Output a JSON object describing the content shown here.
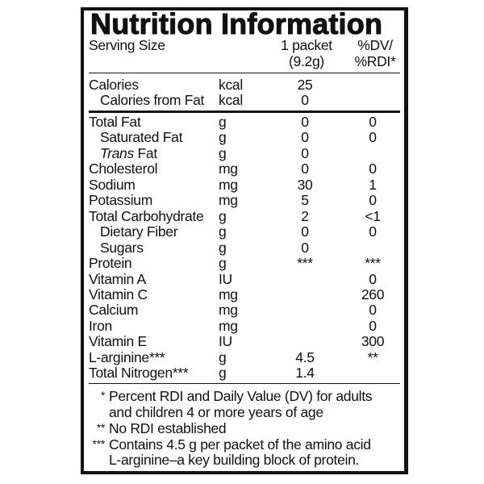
{
  "title": "Nutrition Information",
  "header": {
    "serving_label": "Serving Size",
    "serving_line1": "1 packet",
    "serving_line2": "(9.2g)",
    "dv_line1": "%DV/",
    "dv_line2": "%RDI*"
  },
  "energy": [
    {
      "name": "Calories",
      "unit": "kcal",
      "amount": "25",
      "dv": "",
      "indent": false
    },
    {
      "name": "Calories from Fat",
      "unit": "kcal",
      "amount": "0",
      "dv": "",
      "indent": true
    }
  ],
  "nutrients": [
    {
      "name": "Total Fat",
      "unit": "g",
      "amount": "0",
      "dv": "0",
      "indent": false
    },
    {
      "name": "Saturated Fat",
      "unit": "g",
      "amount": "0",
      "dv": "0",
      "indent": true
    },
    {
      "name": "Trans",
      "name_suffix": " Fat",
      "unit": "g",
      "amount": "0",
      "dv": "",
      "indent": true,
      "italic": true
    },
    {
      "name": "Cholesterol",
      "unit": "mg",
      "amount": "0",
      "dv": "0",
      "indent": false
    },
    {
      "name": "Sodium",
      "unit": "mg",
      "amount": "30",
      "dv": "1",
      "indent": false
    },
    {
      "name": "Potassium",
      "unit": "mg",
      "amount": "5",
      "dv": "0",
      "indent": false
    },
    {
      "name": "Total Carbohydrate",
      "unit": "g",
      "amount": "2",
      "dv": "<1",
      "indent": false
    },
    {
      "name": "Dietary Fiber",
      "unit": "g",
      "amount": "0",
      "dv": "0",
      "indent": true
    },
    {
      "name": "Sugars",
      "unit": "g",
      "amount": "0",
      "dv": "",
      "indent": true
    },
    {
      "name": "Protein",
      "unit": "g",
      "amount": "***",
      "dv": "***",
      "indent": false
    },
    {
      "name": "Vitamin A",
      "unit": "IU",
      "amount": "",
      "dv": "0",
      "indent": false
    },
    {
      "name": "Vitamin C",
      "unit": "mg",
      "amount": "",
      "dv": "260",
      "indent": false
    },
    {
      "name": "Calcium",
      "unit": "mg",
      "amount": "",
      "dv": "0",
      "indent": false
    },
    {
      "name": "Iron",
      "unit": "mg",
      "amount": "",
      "dv": "0",
      "indent": false
    },
    {
      "name": "Vitamin E",
      "unit": "IU",
      "amount": "",
      "dv": "300",
      "indent": false
    },
    {
      "name": "L-arginine***",
      "unit": "g",
      "amount": "4.5",
      "dv": "**",
      "indent": false
    },
    {
      "name": "Total Nitrogen***",
      "unit": "g",
      "amount": "1.4",
      "dv": "",
      "indent": false
    }
  ],
  "footnotes": [
    {
      "mark": "*",
      "lines": [
        "Percent RDI and Daily Value (DV) for adults",
        "and children 4 or more years of age"
      ]
    },
    {
      "mark": "**",
      "lines": [
        "No RDI established"
      ]
    },
    {
      "mark": "***",
      "lines": [
        "Contains 4.5 g per packet of the amino acid",
        "L-arginine–a key building block of protein."
      ]
    }
  ]
}
